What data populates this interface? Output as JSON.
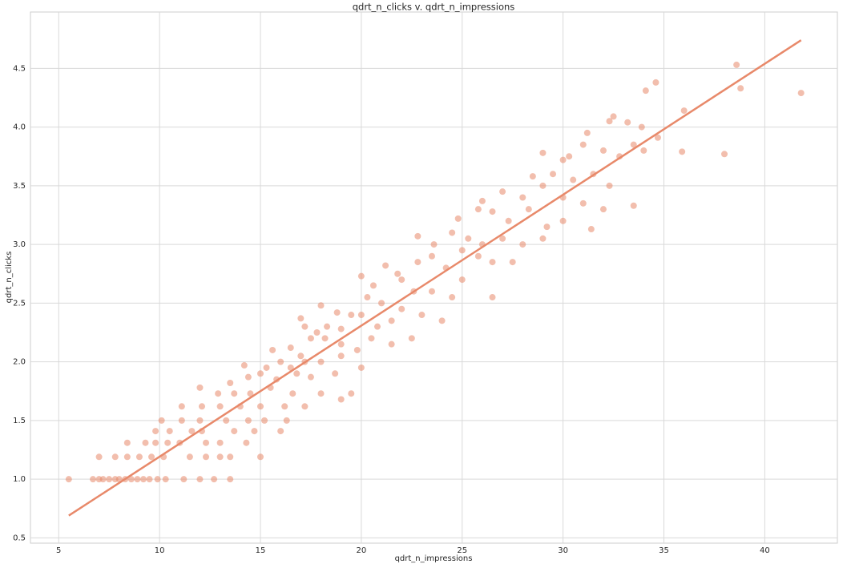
{
  "chart_data": {
    "type": "scatter",
    "title": "qdrt_n_clicks v. qdrt_n_impressions",
    "x_label": "qdrt_n_impressions",
    "y_label": "qdrt_n_clicks",
    "color": "#e8896a",
    "grid": true,
    "xlim": [
      3.6,
      43.6
    ],
    "ylim": [
      0.455,
      4.98
    ],
    "xticks": [
      5,
      10,
      15,
      20,
      25,
      30,
      35,
      40
    ],
    "yticks": [
      0.5,
      {
        "value": 1,
        "label": "1.0"
      },
      1.5,
      {
        "value": 2,
        "label": "2.0"
      },
      2.5,
      {
        "value": 3,
        "label": "3.0"
      },
      3.5,
      {
        "value": 4,
        "label": "4.0"
      },
      4.5
    ],
    "x": [
      5.5,
      6.7,
      7.0,
      7.2,
      7.5,
      7.8,
      8.0,
      8.3,
      8.6,
      8.9,
      9.2,
      9.5,
      9.9,
      10.3,
      11.2,
      12.0,
      12.7,
      13.5,
      7.0,
      7.8,
      8.4,
      9.0,
      9.6,
      10.2,
      11.5,
      12.3,
      13.0,
      13.5,
      15.0,
      8.4,
      9.3,
      9.8,
      10.4,
      11.0,
      12.3,
      13.0,
      14.3,
      9.8,
      10.5,
      11.6,
      12.1,
      13.7,
      14.7,
      16.0,
      10.1,
      11.1,
      12.0,
      13.3,
      14.4,
      15.2,
      16.3,
      11.1,
      12.1,
      13.0,
      14.0,
      15.0,
      16.2,
      17.2,
      12.0,
      12.9,
      13.7,
      14.5,
      15.5,
      16.6,
      18.0,
      19.0,
      13.5,
      14.4,
      15.0,
      15.8,
      16.8,
      17.5,
      18.7,
      19.5,
      14.2,
      15.3,
      16.0,
      16.5,
      17.2,
      18.0,
      19.0,
      20.0,
      15.6,
      16.5,
      17.0,
      17.5,
      18.2,
      19.0,
      19.8,
      20.5,
      21.5,
      17.2,
      17.8,
      18.3,
      19.0,
      20.0,
      20.8,
      21.5,
      22.5,
      17.0,
      18.0,
      18.8,
      19.5,
      20.3,
      21.0,
      22.0,
      23.0,
      24.0,
      20.0,
      20.6,
      21.2,
      22.0,
      22.6,
      23.5,
      24.5,
      25.0,
      26.5,
      21.8,
      22.8,
      23.5,
      24.2,
      25.0,
      25.8,
      26.5,
      27.5,
      22.8,
      23.6,
      24.5,
      25.3,
      26.0,
      27.0,
      28.0,
      29.0,
      24.8,
      25.8,
      26.5,
      27.3,
      28.3,
      29.2,
      30.0,
      26.0,
      27.0,
      28.0,
      29.0,
      30.0,
      31.0,
      32.0,
      33.5,
      28.5,
      29.5,
      30.5,
      31.5,
      32.3,
      31.4,
      29.0,
      30.3,
      31.0,
      32.0,
      32.8,
      33.5,
      34.0,
      30.0,
      31.2,
      32.3,
      32.5,
      33.2,
      33.9,
      34.1,
      34.6,
      34.7,
      36.0,
      35.9,
      38.0,
      38.6,
      38.8,
      41.8
    ],
    "values": [
      1.0,
      1.0,
      1.0,
      1.0,
      1.0,
      1.0,
      1.0,
      1.0,
      1.0,
      1.0,
      1.0,
      1.0,
      1.0,
      1.0,
      1.0,
      1.0,
      1.0,
      1.0,
      1.19,
      1.19,
      1.19,
      1.19,
      1.19,
      1.19,
      1.19,
      1.19,
      1.19,
      1.19,
      1.19,
      1.31,
      1.31,
      1.31,
      1.31,
      1.31,
      1.31,
      1.31,
      1.31,
      1.41,
      1.41,
      1.41,
      1.41,
      1.41,
      1.41,
      1.41,
      1.5,
      1.5,
      1.5,
      1.5,
      1.5,
      1.5,
      1.5,
      1.62,
      1.62,
      1.62,
      1.62,
      1.62,
      1.62,
      1.62,
      1.78,
      1.73,
      1.73,
      1.73,
      1.78,
      1.73,
      1.73,
      1.68,
      1.82,
      1.87,
      1.9,
      1.85,
      1.9,
      1.87,
      1.9,
      1.73,
      1.97,
      1.95,
      2.0,
      1.95,
      2.0,
      2.0,
      2.05,
      1.95,
      2.1,
      2.12,
      2.05,
      2.2,
      2.2,
      2.15,
      2.1,
      2.2,
      2.15,
      2.3,
      2.25,
      2.3,
      2.28,
      2.4,
      2.3,
      2.35,
      2.2,
      2.37,
      2.48,
      2.42,
      2.4,
      2.55,
      2.5,
      2.45,
      2.4,
      2.35,
      2.73,
      2.65,
      2.82,
      2.7,
      2.6,
      2.6,
      2.55,
      2.7,
      2.55,
      2.75,
      2.85,
      2.9,
      2.8,
      2.95,
      2.9,
      2.85,
      2.85,
      3.07,
      3.0,
      3.1,
      3.05,
      3.0,
      3.05,
      3.0,
      3.05,
      3.22,
      3.3,
      3.28,
      3.2,
      3.3,
      3.15,
      3.2,
      3.37,
      3.45,
      3.4,
      3.5,
      3.4,
      3.35,
      3.3,
      3.33,
      3.58,
      3.6,
      3.55,
      3.6,
      3.5,
      3.13,
      3.78,
      3.75,
      3.85,
      3.8,
      3.75,
      3.85,
      3.8,
      3.72,
      3.95,
      4.05,
      4.09,
      4.04,
      4.0,
      4.31,
      4.38,
      3.91,
      4.14,
      3.79,
      3.77,
      4.53,
      4.33,
      4.29
    ],
    "fit_line": {
      "x": [
        5.5,
        41.8
      ],
      "values": [
        0.69,
        4.74
      ]
    }
  }
}
